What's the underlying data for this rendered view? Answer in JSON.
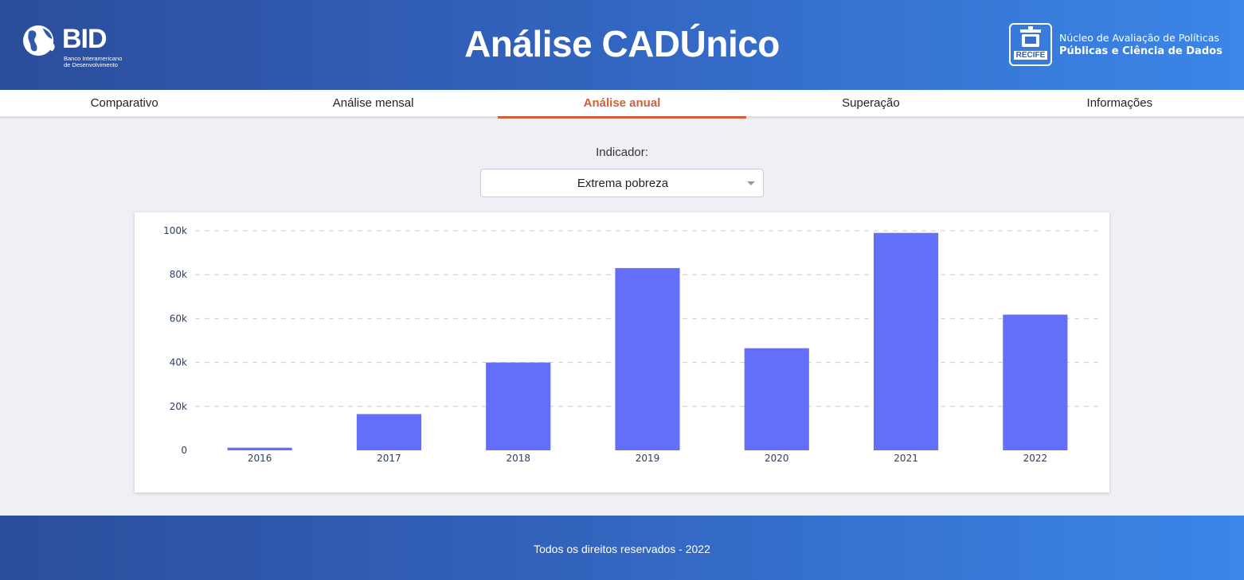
{
  "header": {
    "title": "Análise CADÚnico",
    "bid_logo": {
      "name": "BID",
      "subtitle_line1": "Banco Interamericano",
      "subtitle_line2": "de Desenvolvimento"
    },
    "recife_logo": {
      "name": "RECIFE"
    },
    "nucleo": {
      "line1": "Núcleo de Avaliação de Políticas",
      "line2": "Públicas e Ciência de Dados"
    },
    "color_start": "#2b4d9b",
    "color_end": "#3b86e8"
  },
  "tabs": [
    {
      "label": "Comparativo",
      "active": false
    },
    {
      "label": "Análise mensal",
      "active": false
    },
    {
      "label": "Análise anual",
      "active": true
    },
    {
      "label": "Superação",
      "active": false
    },
    {
      "label": "Informações",
      "active": false
    }
  ],
  "filter": {
    "label": "Indicador:",
    "selected": "Extrema pobreza"
  },
  "chart_data": {
    "type": "bar",
    "categories": [
      "2016",
      "2017",
      "2018",
      "2019",
      "2020",
      "2021",
      "2022"
    ],
    "values": [
      1200,
      16500,
      40000,
      83000,
      46500,
      99000,
      61800
    ],
    "ylim": [
      0,
      100000
    ],
    "yticks": [
      0,
      20000,
      40000,
      60000,
      80000,
      100000
    ],
    "ytick_labels": [
      "0",
      "20k",
      "40k",
      "60k",
      "80k",
      "100k"
    ],
    "grid": true,
    "bar_color": "#636efa",
    "title": "",
    "xlabel": "",
    "ylabel": ""
  },
  "footer": {
    "text": "Todos os direitos reservados - 2022"
  },
  "colors": {
    "active_tab": "#d0603a",
    "page_background": "#eff0f5"
  }
}
